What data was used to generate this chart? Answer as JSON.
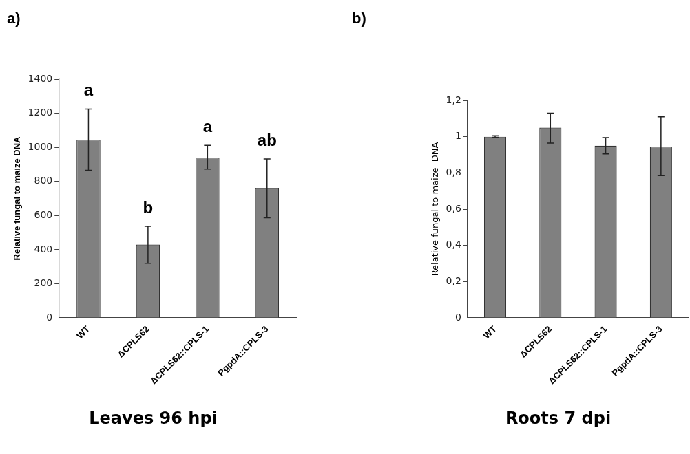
{
  "chart_data": [
    {
      "type": "bar",
      "title": "Leaves 96 hpi",
      "ylabel": "Relative fungal to maize DNA",
      "categories": [
        "WT",
        "ΔCPLS62",
        "ΔCPLS62::CPLS-1",
        "PgpdA::CPLS-3"
      ],
      "values": [
        1045,
        430,
        940,
        760
      ],
      "errors": [
        [
          865,
          1225
        ],
        [
          320,
          537
        ],
        [
          872,
          1012
        ],
        [
          587,
          932
        ]
      ],
      "color": "#808080",
      "ylim": [
        0,
        1400
      ],
      "yticks": [
        0,
        200,
        400,
        600,
        800,
        1000,
        1200,
        1400
      ],
      "grid": false,
      "legend": false,
      "annotations": [
        "a)",
        {
          "text": "a",
          "x": "WT",
          "y": 1225
        },
        {
          "text": "b",
          "x": "ΔCPLS62",
          "y": 537
        },
        {
          "text": "a",
          "x": "ΔCPLS62::CPLS-1",
          "y": 1012
        },
        {
          "text": "ab",
          "x": "PgpdA::CPLS-3",
          "y": 932
        }
      ]
    },
    {
      "type": "bar",
      "title": "Roots 7 dpi",
      "ylabel": "Relative fungal to maize  DNA",
      "categories": [
        "WT",
        "ΔCPLS62",
        "ΔCPLS62::CPLS-1",
        "PgpdA::CPLS-3"
      ],
      "values": [
        1.0,
        1.05,
        0.95,
        0.945
      ],
      "errors": [
        [
          0.997,
          1.005
        ],
        [
          0.965,
          1.13
        ],
        [
          0.905,
          0.995
        ],
        [
          0.785,
          1.11
        ]
      ],
      "color": "#808080",
      "ylim": [
        0,
        1.2
      ],
      "yticks": [
        {
          "value": 0,
          "label": "0"
        },
        {
          "value": 0.2,
          "label": "0,2"
        },
        {
          "value": 0.4,
          "label": "0,4"
        },
        {
          "value": 0.6,
          "label": "0,6"
        },
        {
          "value": 0.8,
          "label": "0,8"
        },
        {
          "value": 1,
          "label": "1"
        },
        {
          "value": 1.2,
          "label": "1,2"
        }
      ],
      "grid": false,
      "legend": false,
      "annotations": [
        "b)"
      ]
    }
  ]
}
